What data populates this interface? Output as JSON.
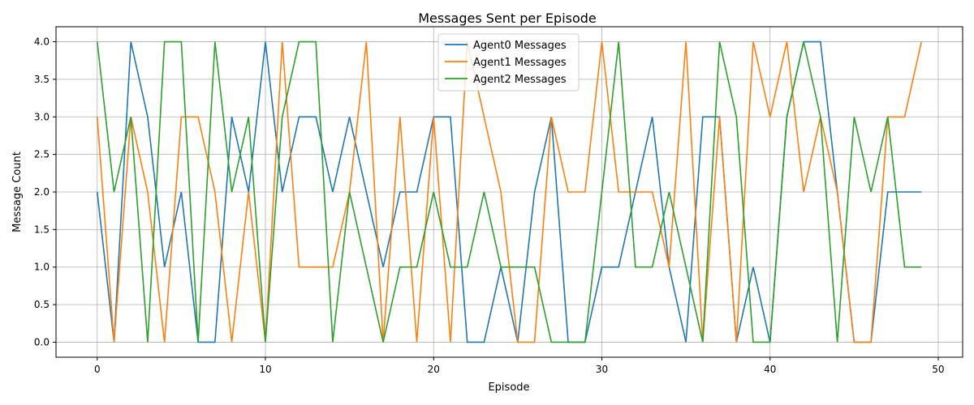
{
  "chart_data": {
    "type": "line",
    "title": "Messages Sent per Episode",
    "xlabel": "Episode",
    "ylabel": "Message Count",
    "xlim": [
      -2.45,
      51.45
    ],
    "ylim": [
      -0.2,
      4.2
    ],
    "xticks": [
      0,
      10,
      20,
      30,
      40,
      50
    ],
    "yticks": [
      0.0,
      0.5,
      1.0,
      1.5,
      2.0,
      2.5,
      3.0,
      3.5,
      4.0
    ],
    "xtick_labels": [
      "0",
      "10",
      "20",
      "30",
      "40",
      "50"
    ],
    "ytick_labels": [
      "0.0",
      "0.5",
      "1.0",
      "1.5",
      "2.0",
      "2.5",
      "3.0",
      "3.5",
      "4.0"
    ],
    "grid": true,
    "legend_position": "top-center",
    "x": [
      0,
      1,
      2,
      3,
      4,
      5,
      6,
      7,
      8,
      9,
      10,
      11,
      12,
      13,
      14,
      15,
      16,
      17,
      18,
      19,
      20,
      21,
      22,
      23,
      24,
      25,
      26,
      27,
      28,
      29,
      30,
      31,
      32,
      33,
      34,
      35,
      36,
      37,
      38,
      39,
      40,
      41,
      42,
      43,
      44,
      45,
      46,
      47,
      48,
      49
    ],
    "series": [
      {
        "name": "Agent0 Messages",
        "color": "#1f77b4",
        "values": [
          2,
          0,
          4,
          3,
          1,
          2,
          0,
          0,
          3,
          2,
          4,
          2,
          3,
          3,
          2,
          3,
          2,
          1,
          2,
          2,
          3,
          3,
          0,
          0,
          1,
          0,
          2,
          3,
          0,
          0,
          1,
          1,
          2,
          3,
          1,
          0,
          3,
          3,
          0,
          1,
          0,
          3,
          4,
          4,
          2,
          0,
          0,
          2,
          2,
          2
        ]
      },
      {
        "name": "Agent1 Messages",
        "color": "#ff7f0e",
        "values": [
          3,
          0,
          3,
          2,
          0,
          3,
          3,
          2,
          0,
          2,
          0,
          4,
          1,
          1,
          1,
          2,
          4,
          0,
          3,
          0,
          3,
          0,
          4,
          3,
          2,
          0,
          0,
          3,
          2,
          2,
          4,
          2,
          2,
          2,
          1,
          4,
          0,
          3,
          0,
          4,
          3,
          4,
          2,
          3,
          2,
          0,
          0,
          3,
          3,
          4
        ]
      },
      {
        "name": "Agent2 Messages",
        "color": "#2ca02c",
        "values": [
          4,
          2,
          3,
          0,
          4,
          4,
          0,
          4,
          2,
          3,
          0,
          3,
          4,
          4,
          0,
          2,
          1,
          0,
          1,
          1,
          2,
          1,
          1,
          2,
          1,
          1,
          1,
          0,
          0,
          0,
          2,
          4,
          1,
          1,
          2,
          1,
          0,
          4,
          3,
          0,
          0,
          3,
          4,
          3,
          0,
          3,
          2,
          3,
          1,
          1
        ]
      }
    ]
  }
}
